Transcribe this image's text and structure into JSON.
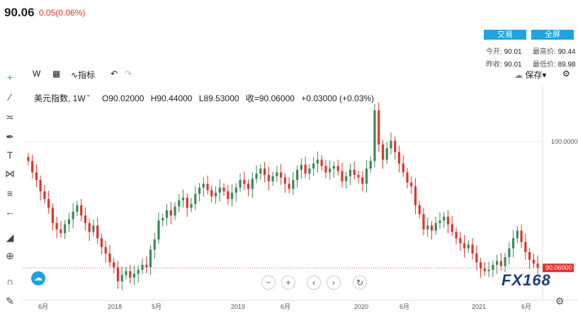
{
  "header": {
    "price": "90.06",
    "change": "0.05(0.06%)"
  },
  "buttons": {
    "trade": "交易",
    "fullscreen": "全屏"
  },
  "stats": {
    "open_label": "今开:",
    "open_value": "90.01",
    "high_label": "最高价:",
    "high_value": "90.44",
    "prev_label": "昨收:",
    "prev_value": "90.01",
    "low_label": "最低价:",
    "low_value": "89.98"
  },
  "toolbar": {
    "interval": "W",
    "indicators": "指标",
    "save": "保存"
  },
  "legend": {
    "name": "美元指数, 1W",
    "open": "O90.02000",
    "high": "H90.44000",
    "low": "L89.53000",
    "close": "收=90.06000",
    "change": "+0.03000 (+0.03%)"
  },
  "price_axis": {
    "tick": "100.00000",
    "last": "90.06000"
  },
  "logo": {
    "text": "FX168"
  },
  "chart_data": {
    "type": "candlestick",
    "title": "美元指数, 1W",
    "x_ticks": [
      "6月",
      "2018",
      "5月",
      "2019",
      "6月",
      "2020",
      "6月",
      "2021",
      "6月"
    ],
    "y_ticks": [
      100.0
    ],
    "last_price": 90.06,
    "ylim": [
      87.5,
      104.5
    ],
    "closes": [
      98.5,
      97.6,
      97.0,
      96.1,
      95.5,
      94.8,
      93.6,
      93.1,
      92.8,
      93.5,
      93.9,
      94.5,
      95.0,
      94.2,
      93.6,
      92.9,
      93.4,
      92.4,
      91.7,
      91.2,
      90.5,
      90.1,
      89.0,
      89.5,
      89.8,
      89.3,
      89.6,
      89.9,
      90.3,
      90.1,
      91.5,
      92.3,
      93.8,
      94.0,
      94.6,
      94.2,
      94.9,
      95.4,
      95.6,
      94.8,
      95.1,
      95.9,
      96.4,
      96.7,
      96.2,
      95.7,
      96.0,
      96.4,
      96.1,
      95.5,
      96.0,
      96.4,
      97.0,
      96.7,
      96.3,
      97.1,
      97.5,
      97.9,
      97.4,
      96.9,
      97.3,
      97.6,
      97.2,
      96.7,
      96.3,
      97.0,
      97.8,
      98.2,
      97.5,
      97.9,
      98.3,
      98.6,
      98.1,
      97.6,
      97.9,
      98.1,
      97.7,
      96.9,
      97.3,
      97.8,
      97.4,
      97.2,
      96.7,
      97.9,
      98.5,
      102.5,
      99.8,
      98.6,
      99.5,
      100.1,
      99.2,
      98.3,
      97.6,
      96.8,
      96.5,
      95.0,
      94.3,
      93.1,
      93.4,
      93.0,
      93.6,
      93.8,
      94.1,
      93.5,
      92.9,
      92.4,
      92.0,
      91.6,
      91.9,
      91.2,
      90.5,
      90.0,
      89.8,
      89.9,
      90.3,
      90.6,
      90.2,
      90.9,
      91.6,
      92.4,
      93.0,
      92.1,
      91.3,
      90.7,
      90.4,
      90.06
    ]
  }
}
